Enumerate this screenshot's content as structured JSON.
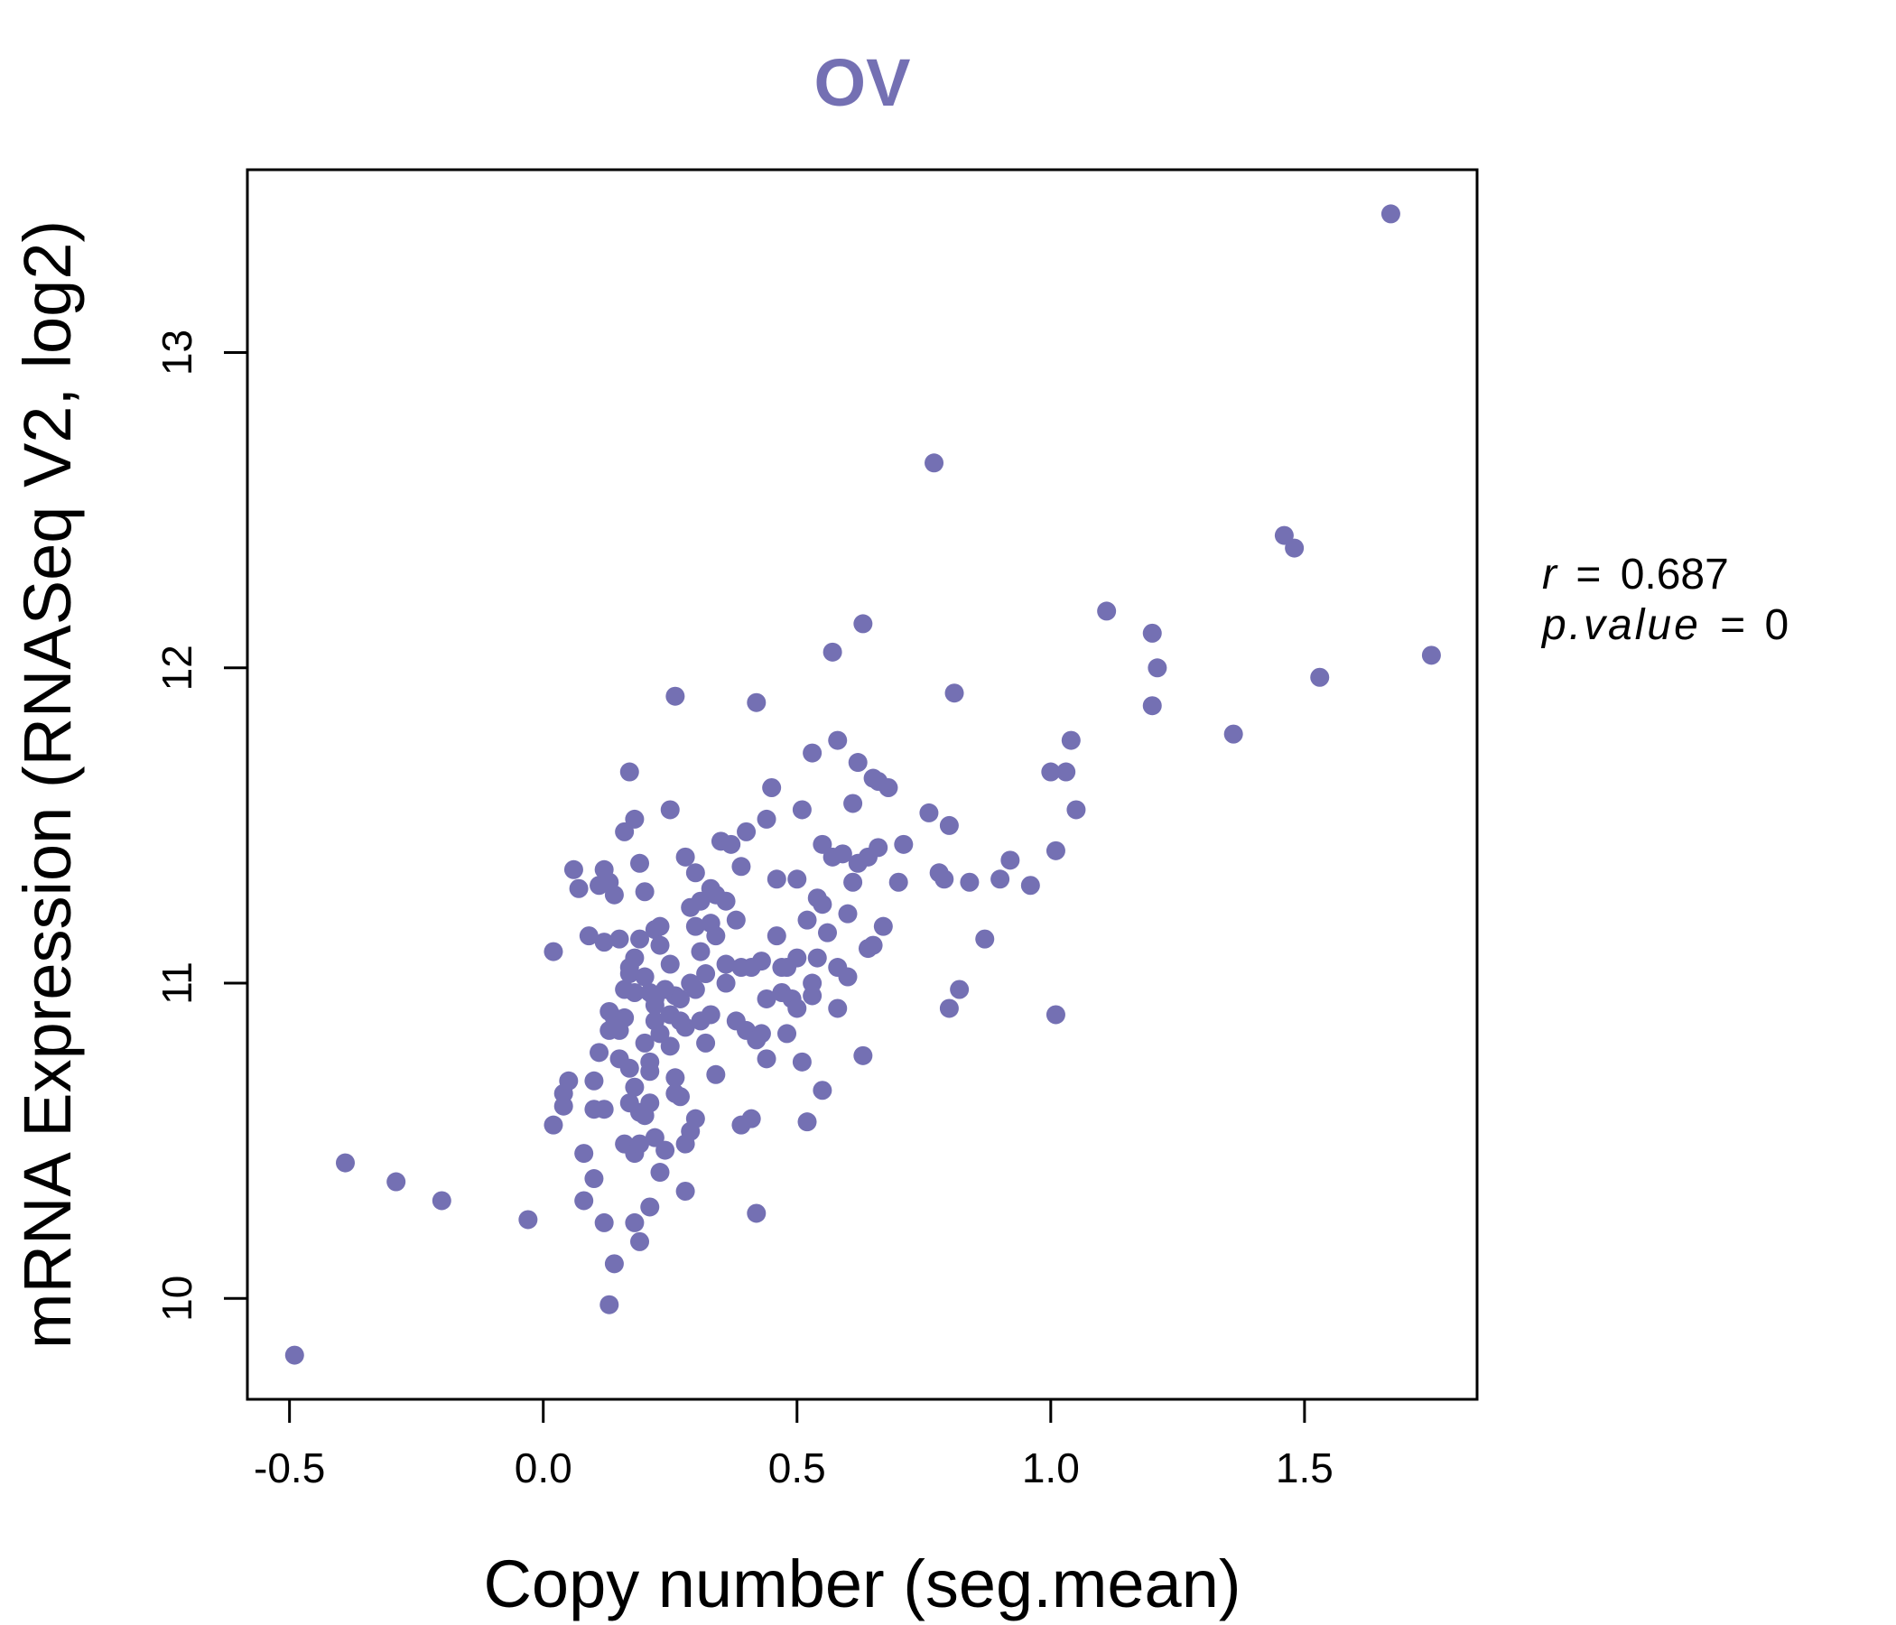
{
  "chart_data": {
    "type": "scatter",
    "title": "OV",
    "xlabel": "Copy number (seg.mean)",
    "ylabel": "mRNA Expression (RNASeq V2, log2)",
    "xlim": [
      -0.583,
      1.84
    ],
    "ylim": [
      9.68,
      13.58
    ],
    "xticks": [
      -0.5,
      0.0,
      0.5,
      1.0,
      1.5
    ],
    "xtick_labels": [
      "-0.5",
      "0.0",
      "0.5",
      "1.0",
      "1.5"
    ],
    "yticks": [
      10,
      11,
      12,
      13
    ],
    "ytick_labels": [
      "10",
      "11",
      "12",
      "13"
    ],
    "grid": false,
    "colors": {
      "points": "#7470b3",
      "title": "#7470b3",
      "axis": "#000000"
    },
    "stats": {
      "r_label": "r",
      "r_value": "0.687",
      "p_label": "p.value",
      "p_value": "0"
    },
    "x": [
      -0.49,
      -0.39,
      -0.29,
      -0.2,
      -0.03,
      0.02,
      0.02,
      0.04,
      0.04,
      0.05,
      0.06,
      0.07,
      0.08,
      0.08,
      0.09,
      0.1,
      0.1,
      0.1,
      0.11,
      0.11,
      0.12,
      0.12,
      0.12,
      0.13,
      0.13,
      0.13,
      0.14,
      0.14,
      0.14,
      0.15,
      0.15,
      0.16,
      0.16,
      0.16,
      0.16,
      0.17,
      0.17,
      0.17,
      0.17,
      0.18,
      0.18,
      0.18,
      0.18,
      0.18,
      0.19,
      0.19,
      0.19,
      0.19,
      0.2,
      0.2,
      0.2,
      0.2,
      0.21,
      0.21,
      0.21,
      0.22,
      0.22,
      0.22,
      0.22,
      0.23,
      0.23,
      0.23,
      0.24,
      0.24,
      0.25,
      0.25,
      0.25,
      0.26,
      0.26,
      0.26,
      0.27,
      0.27,
      0.28,
      0.28,
      0.28,
      0.29,
      0.29,
      0.29,
      0.3,
      0.3,
      0.3,
      0.31,
      0.31,
      0.32,
      0.32,
      0.33,
      0.33,
      0.34,
      0.34,
      0.35,
      0.36,
      0.36,
      0.37,
      0.38,
      0.38,
      0.39,
      0.39,
      0.4,
      0.4,
      0.41,
      0.41,
      0.42,
      0.42,
      0.43,
      0.43,
      0.44,
      0.44,
      0.45,
      0.46,
      0.46,
      0.47,
      0.48,
      0.49,
      0.5,
      0.5,
      0.51,
      0.51,
      0.52,
      0.52,
      0.53,
      0.53,
      0.54,
      0.54,
      0.55,
      0.55,
      0.56,
      0.57,
      0.57,
      0.58,
      0.58,
      0.59,
      0.6,
      0.61,
      0.61,
      0.62,
      0.63,
      0.63,
      0.64,
      0.64,
      0.65,
      0.65,
      0.66,
      0.66,
      0.67,
      0.68,
      0.7,
      0.71,
      0.76,
      0.77,
      0.78,
      0.79,
      0.8,
      0.8,
      0.81,
      0.82,
      0.84,
      0.87,
      0.9,
      0.92,
      0.96,
      1.0,
      1.01,
      1.01,
      1.03,
      1.04,
      1.05,
      1.11,
      1.2,
      1.2,
      1.21,
      1.36,
      1.46,
      1.48,
      1.53,
      1.67,
      1.75,
      0.21,
      0.19,
      0.13,
      0.12,
      0.28,
      0.33,
      0.36,
      0.21,
      0.47,
      0.55,
      0.62,
      0.3,
      0.23,
      0.15,
      0.18,
      0.26,
      0.34,
      0.42,
      0.5,
      0.58,
      0.25,
      0.31,
      0.44,
      0.53,
      0.6,
      0.17,
      0.22,
      0.27,
      0.39,
      0.48
    ],
    "y": [
      9.82,
      10.43,
      10.37,
      10.31,
      10.25,
      10.55,
      11.1,
      10.65,
      10.61,
      10.69,
      11.36,
      11.3,
      10.31,
      10.46,
      11.15,
      10.6,
      10.69,
      10.38,
      10.78,
      11.31,
      10.24,
      10.6,
      11.36,
      10.91,
      11.32,
      9.98,
      11.28,
      10.89,
      10.11,
      10.76,
      11.14,
      10.49,
      10.89,
      10.98,
      11.48,
      10.62,
      10.73,
      11.03,
      11.67,
      10.24,
      10.46,
      10.67,
      10.97,
      11.52,
      10.18,
      10.59,
      11.14,
      11.38,
      10.58,
      10.81,
      11.02,
      11.29,
      10.29,
      10.72,
      10.97,
      10.51,
      10.88,
      10.93,
      11.17,
      10.4,
      10.84,
      11.12,
      10.47,
      10.98,
      10.8,
      11.06,
      11.55,
      10.7,
      10.96,
      11.91,
      10.64,
      10.95,
      10.34,
      10.86,
      11.4,
      10.53,
      11.0,
      11.24,
      10.57,
      11.18,
      11.35,
      10.88,
      11.26,
      10.81,
      11.03,
      10.9,
      11.19,
      10.71,
      11.28,
      11.45,
      11.06,
      11.26,
      11.44,
      10.88,
      11.2,
      10.55,
      11.37,
      10.85,
      11.48,
      10.57,
      11.05,
      10.27,
      11.89,
      10.84,
      11.07,
      10.76,
      11.52,
      11.62,
      11.33,
      11.15,
      10.97,
      10.84,
      10.95,
      11.08,
      11.33,
      10.75,
      11.55,
      10.56,
      11.2,
      10.96,
      11.73,
      11.08,
      11.27,
      10.66,
      11.44,
      11.16,
      11.4,
      12.05,
      11.05,
      11.77,
      11.41,
      11.02,
      11.57,
      11.32,
      11.7,
      12.14,
      10.77,
      11.11,
      11.4,
      11.65,
      11.12,
      11.64,
      11.43,
      11.18,
      11.62,
      11.32,
      11.44,
      11.54,
      12.65,
      11.35,
      11.33,
      10.92,
      11.5,
      11.92,
      10.98,
      11.32,
      11.14,
      11.33,
      11.39,
      11.31,
      11.67,
      10.9,
      11.42,
      11.67,
      11.77,
      11.55,
      12.18,
      12.11,
      11.88,
      12.0,
      11.79,
      12.42,
      12.38,
      11.97,
      13.44,
      12.04,
      10.62,
      10.49,
      10.85,
      11.13,
      10.49,
      11.3,
      11.0,
      10.75,
      11.05,
      11.25,
      11.38,
      10.98,
      11.18,
      10.85,
      11.08,
      10.65,
      11.15,
      10.82,
      10.92,
      10.92,
      10.9,
      11.1,
      10.95,
      11.0,
      11.22,
      11.05,
      10.95,
      10.88,
      11.05,
      11.05
    ]
  }
}
